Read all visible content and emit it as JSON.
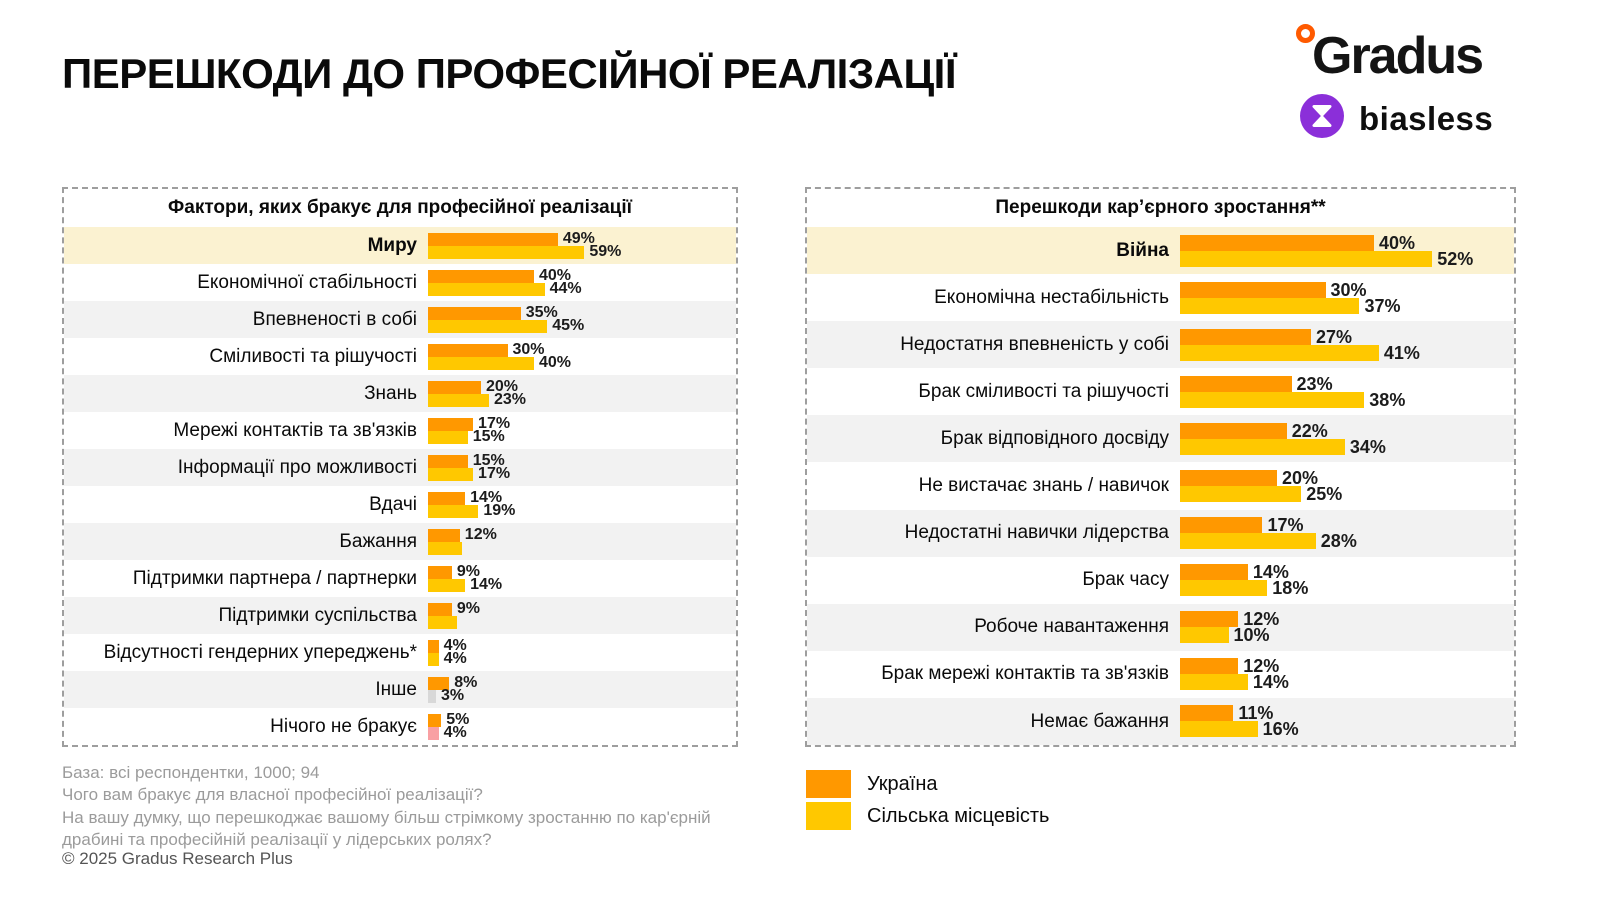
{
  "title": "ПЕРЕШКОДИ ДО ПРОФЕСІЙНОЇ РЕАЛІЗАЦІЇ",
  "logo": {
    "brand": "Gradus",
    "sub_brand": "biasless"
  },
  "colors": {
    "ukraine": "#FF9800",
    "rural": "#FFC800",
    "other_gray_bar": "#D8D8D8",
    "nothing_pink_bar": "#F9A0A3",
    "highlight_row": "#FBF2D1",
    "alt_row": "#F2F2F2"
  },
  "legend": [
    {
      "label": "Україна",
      "color": "#FF9800"
    },
    {
      "label": "Сільська місцевість",
      "color": "#FFC800"
    }
  ],
  "chart_data": [
    {
      "type": "bar",
      "orientation": "horizontal",
      "title": "Фактори, яких бракує для професійної реалізації",
      "series_names": [
        "Україна",
        "Сільська місцевість"
      ],
      "value_unit": "%",
      "rows": [
        {
          "label": "Миру",
          "bold": true,
          "highlight": true,
          "ua": 49,
          "ua_label": "49%",
          "rural": 59,
          "rural_label": "59%"
        },
        {
          "label": "Економічної стабільності",
          "ua": 40,
          "ua_label": "40%",
          "rural": 44,
          "rural_label": "44%"
        },
        {
          "label": "Впевненості в собі",
          "ua": 35,
          "ua_label": "35%",
          "rural": 45,
          "rural_label": "45%"
        },
        {
          "label": "Сміливості та рішучості",
          "ua": 30,
          "ua_label": "30%",
          "rural": 40,
          "rural_label": "40%"
        },
        {
          "label": "Знань",
          "ua": 20,
          "ua_label": "20%",
          "rural": 23,
          "rural_label": "23%"
        },
        {
          "label": "Мережі контактів та зв'язків",
          "ua": 17,
          "ua_label": "17%",
          "rural": 15,
          "rural_label": "15%"
        },
        {
          "label": "Інформації про можливості",
          "ua": 15,
          "ua_label": "15%",
          "rural": 17,
          "rural_label": "17%"
        },
        {
          "label": "Вдачі",
          "ua": 14,
          "ua_label": "14%",
          "rural": 19,
          "rural_label": "19%"
        },
        {
          "label": "Бажання",
          "ua": 12,
          "ua_label": "12%",
          "rural": 13,
          "rural_label": ""
        },
        {
          "label": "Підтримки партнера / партнерки",
          "ua": 9,
          "ua_label": "9%",
          "rural": 14,
          "rural_label": "14%"
        },
        {
          "label": "Підтримки суспільства",
          "ua": 9,
          "ua_label": "9%",
          "rural": 11,
          "rural_label": ""
        },
        {
          "label": "Відсутності гендерних упереджень*",
          "ua": 4,
          "ua_label": "4%",
          "rural": 4,
          "rural_label": "4%"
        },
        {
          "label": "Інше",
          "ua": 8,
          "ua_label": "8%",
          "rural": 3,
          "rural_label": "3%",
          "rural_color": "#D8D8D8"
        },
        {
          "label": "Нічого не бракує",
          "ua": 5,
          "ua_label": "5%",
          "rural": 4,
          "rural_label": "4%",
          "rural_color": "#F9A0A3"
        }
      ]
    },
    {
      "type": "bar",
      "orientation": "horizontal",
      "title": "Перешкоди кар’єрного зростання**",
      "series_names": [
        "Україна",
        "Сільська місцевість"
      ],
      "value_unit": "%",
      "rows": [
        {
          "label": "Війна",
          "bold": true,
          "highlight": true,
          "ua": 40,
          "ua_label": "40%",
          "rural": 52,
          "rural_label": "52%"
        },
        {
          "label": "Економічна нестабільність",
          "ua": 30,
          "ua_label": "30%",
          "rural": 37,
          "rural_label": "37%"
        },
        {
          "label": "Недостатня впевненість у собі",
          "ua": 27,
          "ua_label": "27%",
          "rural": 41,
          "rural_label": "41%"
        },
        {
          "label": "Брак сміливості та рішучості",
          "ua": 23,
          "ua_label": "23%",
          "rural": 38,
          "rural_label": "38%"
        },
        {
          "label": "Брак відповідного досвіду",
          "ua": 22,
          "ua_label": "22%",
          "rural": 34,
          "rural_label": "34%"
        },
        {
          "label": "Не вистачає знань / навичок",
          "ua": 20,
          "ua_label": "20%",
          "rural": 25,
          "rural_label": "25%"
        },
        {
          "label": "Недостатні навички лідерства",
          "ua": 17,
          "ua_label": "17%",
          "rural": 28,
          "rural_label": "28%"
        },
        {
          "label": "Брак часу",
          "ua": 14,
          "ua_label": "14%",
          "rural": 18,
          "rural_label": "18%"
        },
        {
          "label": "Робоче навантаження",
          "ua": 12,
          "ua_label": "12%",
          "rural": 10,
          "rural_label": "10%"
        },
        {
          "label": "Брак мережі контактів та зв'язків",
          "ua": 12,
          "ua_label": "12%",
          "rural": 14,
          "rural_label": "14%"
        },
        {
          "label": "Немає бажання",
          "ua": 11,
          "ua_label": "11%",
          "rural": 16,
          "rural_label": "16%"
        }
      ]
    }
  ],
  "footnotes": [
    "База: всі респондентки, 1000; 94",
    "Чого вам бракує для власної професійної реалізації?",
    "На вашу думку, що перешкоджає вашому більш стрімкому зростанню по кар'єрній драбині та професійній реалізації у лідерських ролях?"
  ],
  "copyright": "© 2025 Gradus Research Plus"
}
